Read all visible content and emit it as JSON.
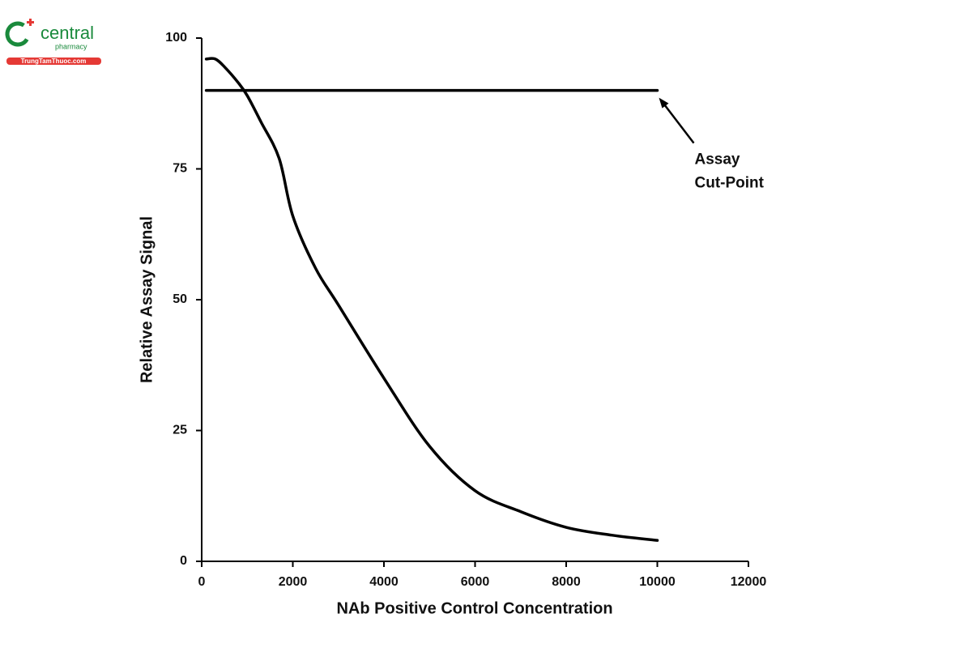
{
  "logo": {
    "name": "central",
    "sub": "pharmacy",
    "url": "TrungTamThuoc.com"
  },
  "chart_data": {
    "type": "line",
    "xlabel": "NAb Positive Control Concentration",
    "ylabel": "Relative Assay Signal",
    "xlim": [
      0,
      12000
    ],
    "xticks": [
      0,
      2000,
      4000,
      6000,
      8000,
      10000,
      12000
    ],
    "ylim": [
      0,
      100
    ],
    "yticks": [
      0,
      25,
      50,
      75,
      100
    ],
    "series": [
      {
        "color": "#000000",
        "x": [
          100,
          300,
          500,
          800,
          1000,
          1300,
          1700,
          2000,
          2500,
          3000,
          4000,
          5000,
          6000,
          7000,
          8000,
          9000,
          10000
        ],
        "values": [
          96,
          96,
          94.5,
          91.5,
          89,
          84,
          77,
          66,
          56,
          49,
          35,
          22,
          13.5,
          9.5,
          6.5,
          5,
          4
        ]
      },
      {
        "color": "#000000",
        "x": [
          100,
          10000
        ],
        "values": [
          90,
          90
        ]
      }
    ],
    "annotation": {
      "lines": [
        "Assay",
        "Cut-Point"
      ]
    }
  }
}
